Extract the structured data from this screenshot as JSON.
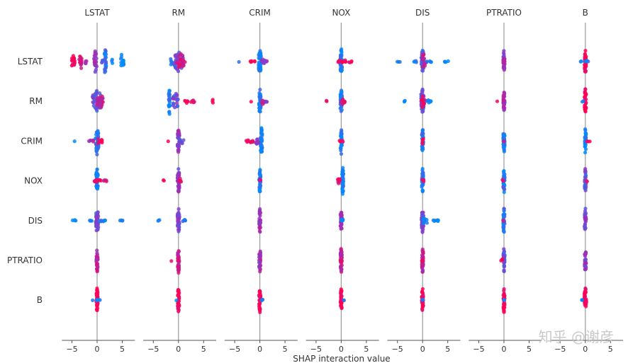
{
  "chart_data": {
    "type": "scatter",
    "subtype": "shap-interaction-beeswarm-matrix",
    "title": "",
    "xlabel": "SHAP interaction value",
    "features": [
      "LSTAT",
      "RM",
      "CRIM",
      "NOX",
      "DIS",
      "PTRATIO",
      "B"
    ],
    "column_titles": [
      "LSTAT",
      "RM",
      "CRIM",
      "NOX",
      "DIS",
      "PTRATIO",
      "B"
    ],
    "row_labels": [
      "LSTAT",
      "RM",
      "CRIM",
      "NOX",
      "DIS",
      "PTRATIO",
      "B"
    ],
    "xlim": [
      -7,
      7.5
    ],
    "xticks": [
      -5,
      0,
      5
    ],
    "xtick_labels": [
      "−5",
      "0",
      "5"
    ],
    "colormap": {
      "low": "#008bfb",
      "mid": "#8c38c9",
      "high": "#ff0052"
    },
    "cells_note": "each cell lists clusters: [x_center, x_spread, vertical_extent(0-1), color_value(0=low blue,1=high red), point_count]",
    "cells": [
      [
        [
          [
            -4.8,
            0.35,
            0.5,
            1.0,
            18
          ],
          [
            -3.3,
            0.25,
            0.6,
            0.8,
            16
          ],
          [
            -2.2,
            0.15,
            0.2,
            0.65,
            4
          ],
          [
            -0.3,
            0.3,
            0.8,
            0.5,
            22
          ],
          [
            1.0,
            0.15,
            0.2,
            0.35,
            4
          ],
          [
            1.6,
            0.2,
            0.95,
            0.15,
            24
          ],
          [
            3.0,
            0.15,
            0.15,
            0.1,
            3
          ],
          [
            5.0,
            0.3,
            0.65,
            0.0,
            14
          ]
        ],
        [
          [
            0.0,
            0.9,
            0.65,
            0.4,
            40
          ],
          [
            0.5,
            0.8,
            0.5,
            0.8,
            24
          ],
          [
            -1.5,
            0.4,
            0.2,
            0.1,
            6
          ]
        ],
        [
          [
            0.0,
            0.25,
            0.85,
            0.0,
            40
          ],
          [
            -4.2,
            0.1,
            0.05,
            0.1,
            1
          ],
          [
            -1.5,
            0.5,
            0.1,
            1.0,
            6
          ],
          [
            0.6,
            0.4,
            0.2,
            0.5,
            8
          ],
          [
            1.2,
            0.2,
            0.1,
            0.4,
            3
          ]
        ],
        [
          [
            0.0,
            0.2,
            0.9,
            0.05,
            36
          ],
          [
            0.2,
            0.8,
            0.15,
            0.95,
            14
          ],
          [
            1.8,
            0.3,
            0.1,
            0.9,
            4
          ]
        ],
        [
          [
            0.0,
            0.25,
            0.85,
            0.3,
            40
          ],
          [
            -4.8,
            0.3,
            0.05,
            0.05,
            3
          ],
          [
            -1.4,
            0.3,
            0.08,
            0.05,
            4
          ],
          [
            1.2,
            0.6,
            0.1,
            0.1,
            8
          ],
          [
            4.8,
            0.4,
            0.05,
            0.0,
            4
          ],
          [
            0.2,
            0.3,
            0.5,
            0.8,
            12
          ]
        ],
        [
          [
            0.0,
            0.15,
            0.8,
            0.55,
            34
          ]
        ],
        [
          [
            0.0,
            0.15,
            0.85,
            1.0,
            34
          ],
          [
            0.3,
            0.4,
            0.05,
            0.1,
            4
          ],
          [
            -0.8,
            0.15,
            0.04,
            0.1,
            2
          ]
        ]
      ],
      [
        [
          [
            0.0,
            0.9,
            0.75,
            0.35,
            44
          ],
          [
            0.6,
            0.6,
            0.5,
            0.75,
            22
          ]
        ],
        [
          [
            -1.8,
            0.15,
            0.95,
            0.1,
            22
          ],
          [
            -0.6,
            0.6,
            0.55,
            0.4,
            22
          ],
          [
            1.5,
            0.3,
            0.15,
            0.95,
            6
          ],
          [
            2.8,
            0.4,
            0.1,
            1.0,
            6
          ],
          [
            6.8,
            0.05,
            0.2,
            1.0,
            3
          ]
        ],
        [
          [
            0.0,
            0.2,
            0.85,
            0.1,
            36
          ],
          [
            -1.8,
            0.1,
            0.05,
            1.0,
            1
          ],
          [
            0.6,
            0.3,
            0.2,
            0.7,
            8
          ],
          [
            1.2,
            0.2,
            0.1,
            0.5,
            3
          ]
        ],
        [
          [
            0.0,
            0.2,
            0.8,
            0.1,
            36
          ],
          [
            -3.0,
            0.15,
            0.05,
            1.0,
            2
          ],
          [
            0.3,
            0.4,
            0.2,
            0.9,
            10
          ]
        ],
        [
          [
            0.0,
            0.3,
            0.85,
            0.35,
            40
          ],
          [
            -3.5,
            0.2,
            0.05,
            0.0,
            3
          ],
          [
            1.2,
            0.6,
            0.1,
            0.1,
            8
          ],
          [
            0.1,
            0.3,
            0.5,
            0.9,
            10
          ]
        ],
        [
          [
            0.0,
            0.15,
            0.75,
            0.6,
            32
          ],
          [
            -1.4,
            0.1,
            0.05,
            1.0,
            1
          ]
        ],
        [
          [
            0.0,
            0.15,
            0.85,
            1.0,
            34
          ],
          [
            -0.5,
            0.15,
            0.04,
            0.1,
            2
          ]
        ]
      ],
      [
        [
          [
            0.0,
            0.3,
            0.9,
            0.1,
            40
          ],
          [
            -4.5,
            0.1,
            0.05,
            0.0,
            1
          ],
          [
            -1.2,
            0.5,
            0.1,
            0.6,
            6
          ],
          [
            0.6,
            0.5,
            0.3,
            0.9,
            10
          ]
        ],
        [
          [
            0.0,
            0.2,
            0.8,
            0.5,
            36
          ],
          [
            -2.0,
            0.1,
            0.05,
            1.0,
            1
          ],
          [
            0.7,
            0.4,
            0.2,
            0.3,
            8
          ]
        ],
        [
          [
            0.3,
            0.2,
            0.95,
            0.05,
            40
          ],
          [
            -2.0,
            0.7,
            0.1,
            1.0,
            10
          ],
          [
            -0.6,
            0.3,
            0.2,
            0.6,
            8
          ]
        ],
        [
          [
            0.0,
            0.15,
            0.85,
            0.05,
            34
          ],
          [
            0.0,
            0.4,
            0.1,
            1.0,
            4
          ]
        ],
        [
          [
            0.0,
            0.15,
            0.85,
            0.1,
            34
          ],
          [
            0.0,
            0.15,
            0.25,
            1.0,
            4
          ]
        ],
        [
          [
            0.0,
            0.15,
            0.85,
            0.1,
            34
          ],
          [
            0.0,
            0.1,
            0.05,
            0.6,
            2
          ]
        ],
        [
          [
            0.0,
            0.15,
            0.85,
            0.05,
            34
          ],
          [
            0.6,
            0.3,
            0.05,
            1.0,
            3
          ]
        ]
      ],
      [
        [
          [
            0.0,
            0.2,
            0.8,
            0.05,
            36
          ],
          [
            0.2,
            0.8,
            0.12,
            0.9,
            14
          ],
          [
            1.6,
            0.3,
            0.1,
            0.85,
            4
          ]
        ],
        [
          [
            0.0,
            0.2,
            0.85,
            0.5,
            36
          ],
          [
            -3.0,
            0.15,
            0.05,
            1.0,
            2
          ],
          [
            0.3,
            0.3,
            0.2,
            1.0,
            6
          ]
        ],
        [
          [
            0.0,
            0.15,
            0.85,
            0.1,
            34
          ],
          [
            0.0,
            0.25,
            0.1,
            0.8,
            4
          ]
        ],
        [
          [
            0.3,
            0.15,
            0.95,
            0.05,
            36
          ],
          [
            -0.5,
            0.3,
            0.2,
            1.0,
            8
          ]
        ],
        [
          [
            0.0,
            0.15,
            0.85,
            0.1,
            34
          ],
          [
            0.0,
            0.25,
            0.1,
            0.8,
            3
          ]
        ],
        [
          [
            0.0,
            0.15,
            0.85,
            0.15,
            34
          ],
          [
            -0.3,
            0.15,
            0.08,
            0.9,
            2
          ]
        ],
        [
          [
            0.0,
            0.15,
            0.85,
            0.35,
            34
          ],
          [
            0.3,
            0.2,
            0.05,
            1.0,
            2
          ]
        ]
      ],
      [
        [
          [
            0.0,
            0.25,
            0.85,
            0.4,
            40
          ],
          [
            -4.5,
            0.4,
            0.05,
            0.0,
            4
          ],
          [
            -1.3,
            0.3,
            0.05,
            0.0,
            4
          ],
          [
            1.2,
            0.7,
            0.08,
            0.1,
            8
          ],
          [
            4.8,
            0.3,
            0.05,
            0.0,
            4
          ]
        ],
        [
          [
            0.0,
            0.2,
            0.85,
            0.45,
            38
          ],
          [
            -3.8,
            0.3,
            0.05,
            0.05,
            3
          ],
          [
            1.0,
            0.5,
            0.08,
            0.05,
            6
          ]
        ],
        [
          [
            0.0,
            0.15,
            0.85,
            0.6,
            34
          ]
        ],
        [
          [
            0.0,
            0.15,
            0.85,
            0.65,
            34
          ],
          [
            0.2,
            0.2,
            0.15,
            0.05,
            4
          ]
        ],
        [
          [
            0.0,
            0.2,
            0.85,
            0.4,
            38
          ],
          [
            0.5,
            0.4,
            0.3,
            0.05,
            10
          ],
          [
            2.7,
            0.6,
            0.05,
            0.0,
            8
          ]
        ],
        [
          [
            0.0,
            0.15,
            0.85,
            0.2,
            34
          ],
          [
            0.0,
            0.15,
            0.06,
            0.8,
            2
          ]
        ],
        [
          [
            0.0,
            0.15,
            0.85,
            0.45,
            34
          ]
        ]
      ],
      [
        [
          [
            0.0,
            0.15,
            0.85,
            0.7,
            34
          ]
        ],
        [
          [
            0.0,
            0.15,
            0.85,
            0.75,
            34
          ],
          [
            -1.4,
            0.1,
            0.05,
            0.9,
            1
          ]
        ],
        [
          [
            0.0,
            0.15,
            0.85,
            0.6,
            34
          ]
        ],
        [
          [
            0.0,
            0.15,
            0.85,
            0.7,
            34
          ],
          [
            -0.2,
            0.15,
            0.08,
            1.0,
            2
          ]
        ],
        [
          [
            0.0,
            0.15,
            0.85,
            0.7,
            34
          ],
          [
            0.0,
            0.15,
            0.06,
            0.9,
            2
          ]
        ],
        [
          [
            0.0,
            0.15,
            0.85,
            0.35,
            34
          ],
          [
            -0.4,
            0.2,
            0.12,
            1.0,
            4
          ]
        ],
        [
          [
            0.0,
            0.15,
            0.85,
            0.5,
            34
          ]
        ]
      ],
      [
        [
          [
            0.0,
            0.15,
            0.85,
            1.0,
            34
          ],
          [
            0.3,
            0.4,
            0.05,
            0.05,
            4
          ],
          [
            -0.8,
            0.1,
            0.04,
            0.0,
            1
          ]
        ],
        [
          [
            0.0,
            0.15,
            0.85,
            1.0,
            34
          ],
          [
            -0.4,
            0.1,
            0.04,
            0.0,
            1
          ]
        ],
        [
          [
            0.0,
            0.15,
            0.85,
            1.0,
            34
          ],
          [
            0.5,
            0.3,
            0.05,
            0.05,
            3
          ]
        ],
        [
          [
            0.0,
            0.15,
            0.85,
            1.0,
            34
          ],
          [
            0.4,
            0.2,
            0.04,
            0.05,
            2
          ]
        ],
        [
          [
            0.0,
            0.15,
            0.85,
            1.0,
            34
          ],
          [
            0.0,
            0.1,
            0.06,
            0.1,
            2
          ]
        ],
        [
          [
            0.0,
            0.15,
            0.85,
            1.0,
            34
          ],
          [
            0.0,
            0.1,
            0.06,
            0.1,
            2
          ]
        ],
        [
          [
            0.0,
            0.2,
            0.85,
            1.0,
            34
          ],
          [
            -0.5,
            0.2,
            0.06,
            0.05,
            3
          ]
        ]
      ]
    ]
  },
  "watermark": "知乎 @谢彦"
}
